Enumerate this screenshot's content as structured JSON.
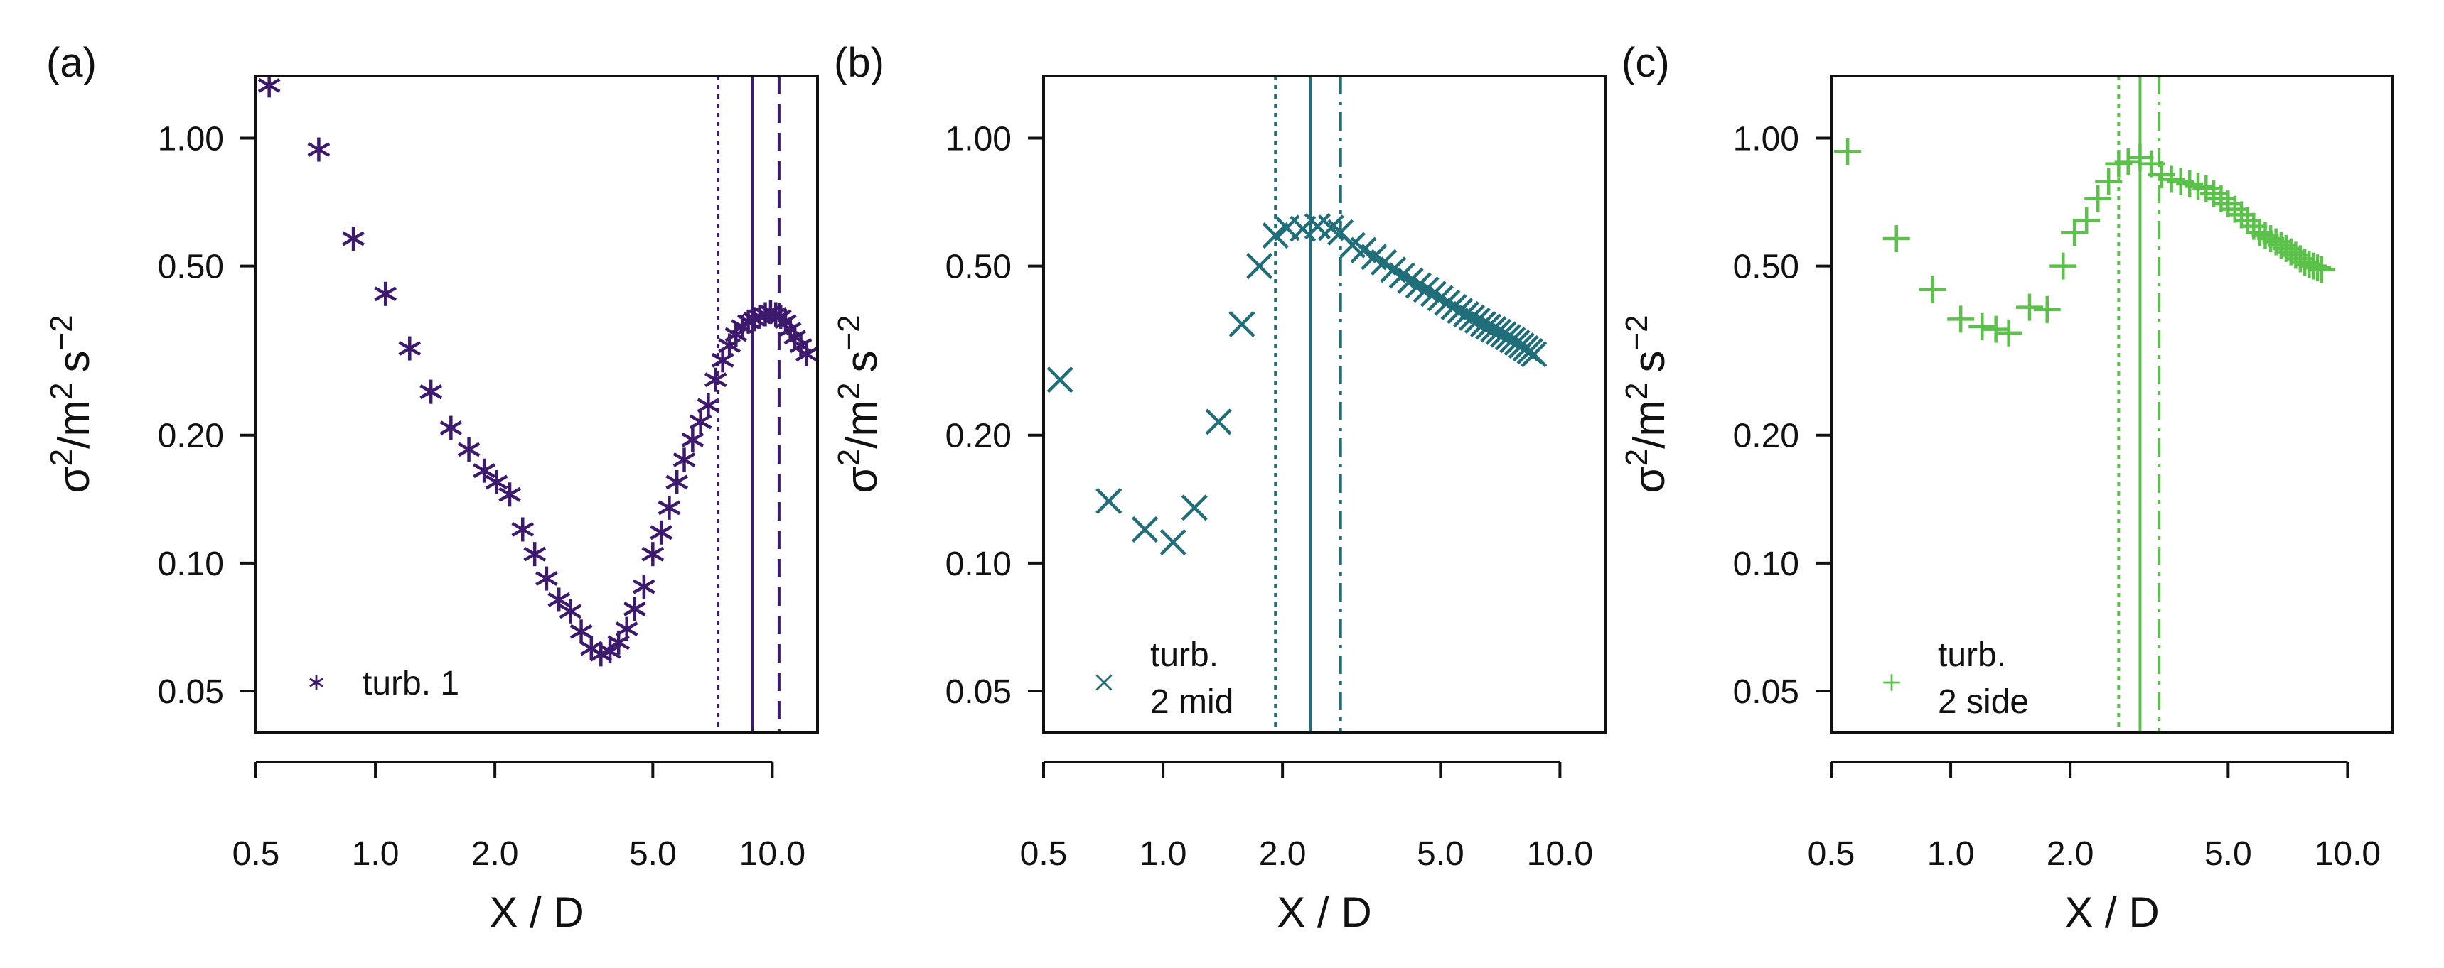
{
  "chart_data": [
    {
      "panel_label": "(a)",
      "type": "scatter",
      "marker": "asterisk",
      "color": "#3d1a6e",
      "xlabel": "X / D",
      "ylabel": {
        "base": "σ",
        "sup": "2",
        "mid": "/m",
        "sup2": "2",
        "unit": "s",
        "sup3": "−2"
      },
      "x_scale": "log",
      "y_scale": "log",
      "xlim": [
        0.5,
        13.0
      ],
      "ylim": [
        0.04,
        1.4
      ],
      "x_ticks": [
        0.5,
        1.0,
        2.0,
        5.0,
        10.0
      ],
      "x_tick_labels": [
        "0.5",
        "1.0",
        "2.0",
        "5.0",
        "10.0"
      ],
      "y_ticks": [
        0.05,
        0.1,
        0.2,
        0.5,
        1.0
      ],
      "y_tick_labels": [
        "0.05",
        "0.10",
        "0.20",
        "0.50",
        "1.00"
      ],
      "legend": {
        "label_lines": [
          "turb. 1"
        ],
        "position": "bottom-left"
      },
      "vlines": [
        {
          "x": 7.3,
          "style": "dotted"
        },
        {
          "x": 8.9,
          "style": "solid"
        },
        {
          "x": 10.4,
          "style": "dashed"
        }
      ],
      "series": [
        {
          "x": [
            0.54,
            0.72,
            0.88,
            1.06,
            1.22,
            1.38,
            1.55,
            1.72,
            1.88,
            2.02,
            2.18,
            2.35,
            2.52,
            2.7,
            2.9,
            3.1,
            3.3,
            3.5,
            3.7,
            3.9,
            4.1,
            4.3,
            4.5,
            4.75,
            5.0,
            5.25,
            5.5,
            5.75,
            6.0,
            6.3,
            6.6,
            6.9,
            7.2,
            7.5,
            7.8,
            8.1,
            8.4,
            8.7,
            9.0,
            9.3,
            9.6,
            9.9,
            10.2,
            10.5,
            10.8,
            11.1,
            11.4,
            11.8,
            12.2
          ],
          "y": [
            1.33,
            0.94,
            0.58,
            0.43,
            0.32,
            0.253,
            0.208,
            0.185,
            0.165,
            0.155,
            0.145,
            0.12,
            0.105,
            0.092,
            0.082,
            0.077,
            0.069,
            0.063,
            0.061,
            0.062,
            0.065,
            0.07,
            0.078,
            0.088,
            0.105,
            0.118,
            0.135,
            0.155,
            0.175,
            0.195,
            0.215,
            0.235,
            0.27,
            0.3,
            0.325,
            0.345,
            0.36,
            0.37,
            0.375,
            0.38,
            0.385,
            0.39,
            0.385,
            0.38,
            0.37,
            0.355,
            0.34,
            0.325,
            0.31
          ]
        }
      ]
    },
    {
      "panel_label": "(b)",
      "type": "scatter",
      "marker": "x",
      "color": "#1f6e7a",
      "xlabel": "X / D",
      "ylabel": {
        "base": "σ",
        "sup": "2",
        "mid": "/m",
        "sup2": "2",
        "unit": "s",
        "sup3": "−2"
      },
      "x_scale": "log",
      "y_scale": "log",
      "xlim": [
        0.5,
        13.0
      ],
      "ylim": [
        0.04,
        1.4
      ],
      "x_ticks": [
        0.5,
        1.0,
        2.0,
        5.0,
        10.0
      ],
      "x_tick_labels": [
        "0.5",
        "1.0",
        "2.0",
        "5.0",
        "10.0"
      ],
      "y_ticks": [
        0.05,
        0.1,
        0.2,
        0.5,
        1.0
      ],
      "y_tick_labels": [
        "0.05",
        "0.10",
        "0.20",
        "0.50",
        "1.00"
      ],
      "legend": {
        "label_lines": [
          "turb.",
          "2 mid"
        ],
        "position": "bottom-left"
      },
      "vlines": [
        {
          "x": 1.92,
          "style": "dotted"
        },
        {
          "x": 2.35,
          "style": "solid"
        },
        {
          "x": 2.8,
          "style": "dashdot"
        }
      ],
      "series": [
        {
          "x": [
            0.55,
            0.73,
            0.9,
            1.06,
            1.2,
            1.38,
            1.58,
            1.75,
            1.92,
            2.05,
            2.25,
            2.45,
            2.65,
            2.8,
            3.0,
            3.2,
            3.4,
            3.6,
            3.8,
            4.0,
            4.2,
            4.4,
            4.6,
            4.8,
            5.0,
            5.2,
            5.4,
            5.6,
            5.8,
            6.0,
            6.2,
            6.4,
            6.6,
            6.8,
            7.0,
            7.2,
            7.4,
            7.6,
            7.8,
            8.0,
            8.2,
            8.4,
            8.6
          ],
          "y": [
            0.27,
            0.14,
            0.12,
            0.112,
            0.135,
            0.215,
            0.365,
            0.5,
            0.59,
            0.615,
            0.612,
            0.62,
            0.615,
            0.6,
            0.56,
            0.545,
            0.525,
            0.51,
            0.49,
            0.475,
            0.462,
            0.45,
            0.44,
            0.43,
            0.42,
            0.41,
            0.4,
            0.392,
            0.385,
            0.378,
            0.372,
            0.365,
            0.36,
            0.355,
            0.35,
            0.345,
            0.34,
            0.335,
            0.33,
            0.325,
            0.32,
            0.315,
            0.31
          ]
        }
      ]
    },
    {
      "panel_label": "(c)",
      "type": "scatter",
      "marker": "plus",
      "color": "#5cc14a",
      "xlabel": "X / D",
      "ylabel": {
        "base": "σ",
        "sup": "2",
        "mid": "/m",
        "sup2": "2",
        "unit": "s",
        "sup3": "−2"
      },
      "x_scale": "log",
      "y_scale": "log",
      "xlim": [
        0.5,
        13.0
      ],
      "ylim": [
        0.04,
        1.4
      ],
      "x_ticks": [
        0.5,
        1.0,
        2.0,
        5.0,
        10.0
      ],
      "x_tick_labels": [
        "0.5",
        "1.0",
        "2.0",
        "5.0",
        "10.0"
      ],
      "y_ticks": [
        0.05,
        0.1,
        0.2,
        0.5,
        1.0
      ],
      "y_tick_labels": [
        "0.05",
        "0.10",
        "0.20",
        "0.50",
        "1.00"
      ],
      "legend": {
        "label_lines": [
          "turb.",
          "2 side"
        ],
        "position": "bottom-left"
      },
      "vlines": [
        {
          "x": 2.65,
          "style": "dotted"
        },
        {
          "x": 3.0,
          "style": "solid"
        },
        {
          "x": 3.35,
          "style": "dashdot"
        }
      ],
      "series": [
        {
          "x": [
            0.55,
            0.73,
            0.9,
            1.06,
            1.2,
            1.3,
            1.4,
            1.58,
            1.75,
            1.92,
            2.05,
            2.2,
            2.35,
            2.5,
            2.65,
            2.8,
            3.0,
            3.2,
            3.4,
            3.6,
            3.8,
            4.0,
            4.2,
            4.4,
            4.6,
            4.8,
            5.0,
            5.2,
            5.4,
            5.6,
            5.8,
            6.0,
            6.2,
            6.4,
            6.6,
            6.8,
            7.0,
            7.2,
            7.4,
            7.6,
            7.8,
            8.0,
            8.2,
            8.4,
            8.6
          ],
          "y": [
            0.93,
            0.58,
            0.44,
            0.375,
            0.36,
            0.355,
            0.348,
            0.4,
            0.395,
            0.5,
            0.6,
            0.64,
            0.72,
            0.79,
            0.87,
            0.88,
            0.9,
            0.87,
            0.82,
            0.8,
            0.79,
            0.78,
            0.77,
            0.76,
            0.74,
            0.72,
            0.7,
            0.68,
            0.66,
            0.64,
            0.62,
            0.6,
            0.59,
            0.58,
            0.57,
            0.56,
            0.55,
            0.54,
            0.53,
            0.52,
            0.51,
            0.505,
            0.5,
            0.495,
            0.49
          ]
        }
      ]
    }
  ]
}
